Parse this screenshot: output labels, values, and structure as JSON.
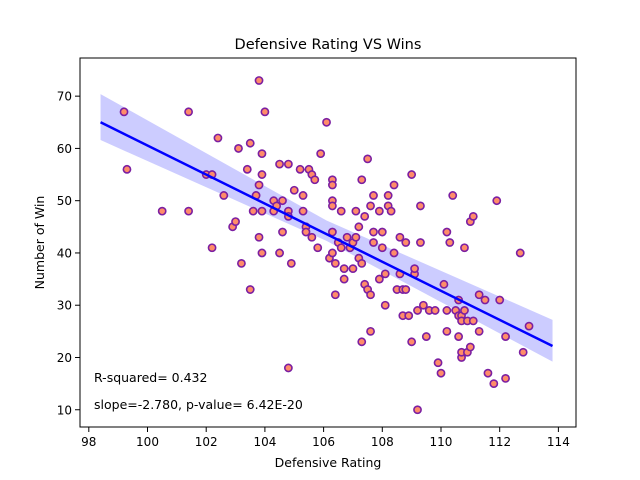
{
  "chart_data": {
    "type": "scatter",
    "title": "Defensive Rating VS Wins",
    "xlabel": "Defensive Rating",
    "ylabel": "Number of Win",
    "xlim": [
      97.7,
      114.6
    ],
    "ylim": [
      6.7,
      77.3
    ],
    "xticks": [
      98,
      100,
      102,
      104,
      106,
      108,
      110,
      112,
      114
    ],
    "yticks": [
      10,
      20,
      30,
      40,
      50,
      60,
      70
    ],
    "grid": false,
    "annotations": {
      "r_squared": "R-squared= 0.432",
      "slope": "slope=-2.780, p-value= 6.42E-20"
    },
    "regression": {
      "slope": -2.78,
      "intercept": 338.56,
      "x_range": [
        98.4,
        113.8
      ],
      "ci_lower": [
        [
          98.4,
          61.6
        ],
        [
          106.1,
          42.3
        ],
        [
          113.8,
          19.2
        ]
      ],
      "ci_upper": [
        [
          98.4,
          70.4
        ],
        [
          106.1,
          46.2
        ],
        [
          113.8,
          27.2
        ]
      ],
      "line_color": "#0000ff",
      "band_color": "#ccccff"
    },
    "marker": {
      "fill": "#ff8c69",
      "edge": "#7b1fa2"
    },
    "points": [
      [
        99.2,
        67
      ],
      [
        99.3,
        56
      ],
      [
        100.5,
        48
      ],
      [
        101.4,
        67
      ],
      [
        101.4,
        48
      ],
      [
        102,
        55
      ],
      [
        102.2,
        55
      ],
      [
        102.2,
        41
      ],
      [
        102.4,
        62
      ],
      [
        102.6,
        51
      ],
      [
        102.9,
        45
      ],
      [
        103,
        46
      ],
      [
        103.1,
        60
      ],
      [
        103.2,
        38
      ],
      [
        103.4,
        56
      ],
      [
        103.5,
        61
      ],
      [
        103.5,
        33
      ],
      [
        103.6,
        48
      ],
      [
        103.7,
        51
      ],
      [
        103.8,
        73
      ],
      [
        103.8,
        53
      ],
      [
        103.8,
        43
      ],
      [
        103.9,
        59
      ],
      [
        103.9,
        55
      ],
      [
        103.9,
        48
      ],
      [
        103.9,
        40
      ],
      [
        104,
        67
      ],
      [
        104.3,
        50
      ],
      [
        104.3,
        48
      ],
      [
        104.4,
        49
      ],
      [
        104.5,
        57
      ],
      [
        104.5,
        40
      ],
      [
        104.6,
        44
      ],
      [
        104.6,
        50
      ],
      [
        104.8,
        48
      ],
      [
        104.8,
        18
      ],
      [
        104.8,
        57
      ],
      [
        104.8,
        47
      ],
      [
        104.9,
        38
      ],
      [
        105,
        52
      ],
      [
        105.2,
        56
      ],
      [
        105.3,
        51
      ],
      [
        105.3,
        48
      ],
      [
        105.4,
        45
      ],
      [
        105.4,
        44
      ],
      [
        105.5,
        56
      ],
      [
        105.6,
        55
      ],
      [
        105.6,
        43
      ],
      [
        105.7,
        54
      ],
      [
        105.8,
        41
      ],
      [
        105.9,
        59
      ],
      [
        106.1,
        65
      ],
      [
        106.2,
        39
      ],
      [
        106.3,
        40
      ],
      [
        106.3,
        54
      ],
      [
        106.3,
        53
      ],
      [
        106.3,
        50
      ],
      [
        106.3,
        49
      ],
      [
        106.3,
        44
      ],
      [
        106.4,
        38
      ],
      [
        106.4,
        32
      ],
      [
        106.5,
        42
      ],
      [
        106.6,
        48
      ],
      [
        106.6,
        41
      ],
      [
        106.7,
        37
      ],
      [
        106.7,
        35
      ],
      [
        106.8,
        43
      ],
      [
        106.9,
        41
      ],
      [
        107,
        37
      ],
      [
        107,
        42
      ],
      [
        107.1,
        43
      ],
      [
        107.1,
        48
      ],
      [
        107.2,
        45
      ],
      [
        107.2,
        39
      ],
      [
        107.3,
        38
      ],
      [
        107.3,
        23
      ],
      [
        107.3,
        54
      ],
      [
        107.4,
        34
      ],
      [
        107.4,
        47
      ],
      [
        107.5,
        58
      ],
      [
        107.5,
        33
      ],
      [
        107.6,
        32
      ],
      [
        107.6,
        49
      ],
      [
        107.6,
        25
      ],
      [
        107.7,
        44
      ],
      [
        107.7,
        42
      ],
      [
        107.7,
        51
      ],
      [
        107.9,
        35
      ],
      [
        107.9,
        48
      ],
      [
        108,
        41
      ],
      [
        108,
        44
      ],
      [
        108.1,
        30
      ],
      [
        108.1,
        36
      ],
      [
        108.2,
        49
      ],
      [
        108.2,
        51
      ],
      [
        108.3,
        48
      ],
      [
        108.4,
        53
      ],
      [
        108.4,
        40
      ],
      [
        108.5,
        33
      ],
      [
        108.6,
        36
      ],
      [
        108.6,
        43
      ],
      [
        108.7,
        33
      ],
      [
        108.7,
        28
      ],
      [
        108.8,
        33
      ],
      [
        108.8,
        42
      ],
      [
        108.9,
        28
      ],
      [
        109,
        55
      ],
      [
        109,
        23
      ],
      [
        109.1,
        36
      ],
      [
        109.1,
        37
      ],
      [
        109.2,
        10
      ],
      [
        109.2,
        29
      ],
      [
        109.3,
        49
      ],
      [
        109.3,
        42
      ],
      [
        109.4,
        30
      ],
      [
        109.5,
        24
      ],
      [
        109.6,
        29
      ],
      [
        109.8,
        29
      ],
      [
        109.9,
        19
      ],
      [
        110,
        17
      ],
      [
        110.1,
        34
      ],
      [
        110.2,
        44
      ],
      [
        110.2,
        25
      ],
      [
        110.2,
        29
      ],
      [
        110.3,
        42
      ],
      [
        110.4,
        51
      ],
      [
        110.5,
        29
      ],
      [
        110.6,
        31
      ],
      [
        110.6,
        28
      ],
      [
        110.6,
        24
      ],
      [
        110.7,
        20
      ],
      [
        110.7,
        21
      ],
      [
        110.7,
        28
      ],
      [
        110.7,
        27
      ],
      [
        110.8,
        29
      ],
      [
        110.8,
        41
      ],
      [
        110.9,
        21
      ],
      [
        110.9,
        27
      ],
      [
        111,
        22
      ],
      [
        111,
        46
      ],
      [
        111.1,
        27
      ],
      [
        111.1,
        47
      ],
      [
        111.3,
        32
      ],
      [
        111.3,
        25
      ],
      [
        111.5,
        31
      ],
      [
        111.6,
        17
      ],
      [
        111.8,
        15
      ],
      [
        111.9,
        50
      ],
      [
        112,
        31
      ],
      [
        112.2,
        16
      ],
      [
        112.2,
        24
      ],
      [
        112.7,
        40
      ],
      [
        112.8,
        21
      ],
      [
        113,
        26
      ]
    ]
  }
}
